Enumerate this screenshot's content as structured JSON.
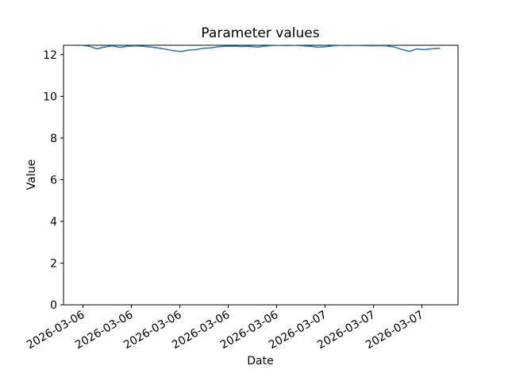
{
  "chart_data": {
    "type": "line",
    "title": "Parameter values",
    "xlabel": "Date",
    "ylabel": "Value",
    "x_tick_labels": [
      "2026-03-06",
      "2026-03-06",
      "2026-03-06",
      "2026-03-06",
      "2026-03-06",
      "2026-03-07",
      "2026-03-07",
      "2026-03-07"
    ],
    "y_ticks": [
      0,
      2,
      4,
      6,
      8,
      10,
      12
    ],
    "ylim": [
      0,
      12.45
    ],
    "grid": false,
    "legend_position": "none",
    "line_color": "#1f77b4",
    "background_color": "#ffffff",
    "series": [
      {
        "color": "#1f77b4",
        "values": [
          12.44,
          12.4,
          12.28,
          12.37,
          12.42,
          12.35,
          12.4,
          12.42,
          12.4,
          12.37,
          12.32,
          12.26,
          12.19,
          12.15,
          12.21,
          12.24,
          12.3,
          12.33,
          12.38,
          12.4,
          12.41,
          12.39,
          12.4,
          12.36,
          12.41,
          12.43,
          12.44,
          12.43,
          12.44,
          12.42,
          12.4,
          12.36,
          12.38,
          12.42,
          12.44,
          12.43,
          12.44,
          12.43,
          12.42,
          12.43,
          12.42,
          12.37,
          12.25,
          12.16,
          12.27,
          12.24,
          12.28,
          12.3
        ]
      }
    ]
  }
}
